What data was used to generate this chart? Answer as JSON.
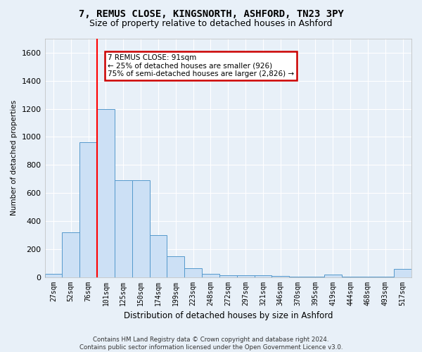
{
  "title1": "7, REMUS CLOSE, KINGSNORTH, ASHFORD, TN23 3PY",
  "title2": "Size of property relative to detached houses in Ashford",
  "xlabel": "Distribution of detached houses by size in Ashford",
  "ylabel": "Number of detached properties",
  "categories": [
    "27sqm",
    "52sqm",
    "76sqm",
    "101sqm",
    "125sqm",
    "150sqm",
    "174sqm",
    "199sqm",
    "223sqm",
    "248sqm",
    "272sqm",
    "297sqm",
    "321sqm",
    "346sqm",
    "370sqm",
    "395sqm",
    "419sqm",
    "444sqm",
    "468sqm",
    "493sqm",
    "517sqm"
  ],
  "values": [
    25,
    320,
    960,
    1200,
    690,
    690,
    300,
    150,
    65,
    25,
    15,
    13,
    12,
    10,
    5,
    5,
    20,
    5,
    5,
    5,
    60
  ],
  "bar_color": "#cce0f5",
  "bar_edge_color": "#5599cc",
  "annotation_text": "7 REMUS CLOSE: 91sqm\n← 25% of detached houses are smaller (926)\n75% of semi-detached houses are larger (2,826) →",
  "annotation_box_color": "#ffffff",
  "annotation_box_edge": "#cc0000",
  "ylim": [
    0,
    1700
  ],
  "yticks": [
    0,
    200,
    400,
    600,
    800,
    1000,
    1200,
    1400,
    1600
  ],
  "footer1": "Contains HM Land Registry data © Crown copyright and database right 2024.",
  "footer2": "Contains public sector information licensed under the Open Government Licence v3.0.",
  "background_color": "#e8f0f8",
  "grid_color": "#ffffff",
  "bar_width": 1.0
}
